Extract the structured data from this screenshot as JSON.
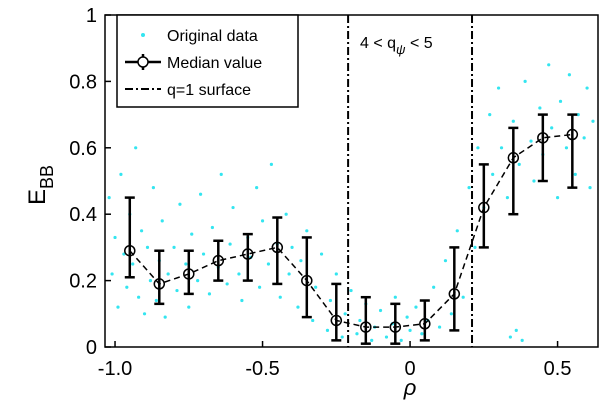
{
  "chart_data": {
    "type": "scatter-median",
    "x_label": "ρ",
    "y_label": {
      "main": "E",
      "subscript": "BB"
    },
    "annotation": {
      "text": "4 < q",
      "subscript": "ψ",
      "suffix": " < 5"
    },
    "xlim": [
      -1.034,
      0.637
    ],
    "ylim": [
      0,
      1
    ],
    "xticks": [
      {
        "value": -1,
        "label": "-1.0"
      },
      -0.5,
      0,
      0.5
    ],
    "yticks": [
      0,
      0.2,
      0.4,
      0.6,
      0.8,
      1
    ],
    "legend": "upper left",
    "scatter": {
      "name": "Original data",
      "color": "#33e5f0",
      "points": [
        [
          -1.02,
          0.45
        ],
        [
          -1.01,
          0.22
        ],
        [
          -1.0,
          0.33
        ],
        [
          -0.99,
          0.12
        ],
        [
          -0.98,
          0.52
        ],
        [
          -0.97,
          0.28
        ],
        [
          -0.96,
          0.18
        ],
        [
          -0.95,
          0.4
        ],
        [
          -0.94,
          0.25
        ],
        [
          -0.93,
          0.6
        ],
        [
          -0.92,
          0.15
        ],
        [
          -0.91,
          0.35
        ],
        [
          -0.9,
          0.1
        ],
        [
          -0.89,
          0.3
        ],
        [
          -0.88,
          0.2
        ],
        [
          -0.87,
          0.48
        ],
        [
          -0.86,
          0.14
        ],
        [
          -0.85,
          0.26
        ],
        [
          -0.84,
          0.38
        ],
        [
          -0.83,
          0.09
        ],
        [
          -0.82,
          0.22
        ],
        [
          -0.8,
          0.3
        ],
        [
          -0.79,
          0.17
        ],
        [
          -0.78,
          0.43
        ],
        [
          -0.76,
          0.25
        ],
        [
          -0.75,
          0.12
        ],
        [
          -0.74,
          0.34
        ],
        [
          -0.72,
          0.2
        ],
        [
          -0.71,
          0.46
        ],
        [
          -0.7,
          0.28
        ],
        [
          -0.68,
          0.16
        ],
        [
          -0.67,
          0.36
        ],
        [
          -0.65,
          0.24
        ],
        [
          -0.64,
          0.52
        ],
        [
          -0.62,
          0.19
        ],
        [
          -0.61,
          0.31
        ],
        [
          -0.6,
          0.42
        ],
        [
          -0.58,
          0.22
        ],
        [
          -0.57,
          0.14
        ],
        [
          -0.55,
          0.33
        ],
        [
          -0.54,
          0.27
        ],
        [
          -0.52,
          0.48
        ],
        [
          -0.51,
          0.18
        ],
        [
          -0.5,
          0.38
        ],
        [
          -0.48,
          0.25
        ],
        [
          -0.47,
          0.55
        ],
        [
          -0.45,
          0.31
        ],
        [
          -0.44,
          0.15
        ],
        [
          -0.42,
          0.4
        ],
        [
          -0.41,
          0.22
        ],
        [
          -0.4,
          0.3
        ],
        [
          -0.38,
          0.12
        ],
        [
          -0.37,
          0.26
        ],
        [
          -0.35,
          0.35
        ],
        [
          -0.33,
          0.08
        ],
        [
          -0.32,
          0.18
        ],
        [
          -0.3,
          0.28
        ],
        [
          -0.28,
          0.05
        ],
        [
          -0.27,
          0.14
        ],
        [
          -0.25,
          0.22
        ],
        [
          -0.23,
          0.03
        ],
        [
          -0.22,
          0.1
        ],
        [
          -0.2,
          0.17
        ],
        [
          -0.18,
          0.04
        ],
        [
          -0.17,
          0.08
        ],
        [
          -0.15,
          0.13
        ],
        [
          -0.13,
          0.02
        ],
        [
          -0.12,
          0.06
        ],
        [
          -0.1,
          0.11
        ],
        [
          -0.08,
          0.03
        ],
        [
          -0.06,
          0.07
        ],
        [
          -0.05,
          0.15
        ],
        [
          -0.03,
          0.02
        ],
        [
          -0.01,
          0.09
        ],
        [
          0.0,
          0.05
        ],
        [
          0.02,
          0.12
        ],
        [
          0.04,
          0.04
        ],
        [
          0.06,
          0.08
        ],
        [
          0.08,
          0.18
        ],
        [
          0.1,
          0.06
        ],
        [
          0.12,
          0.26
        ],
        [
          0.14,
          0.1
        ],
        [
          0.16,
          0.35
        ],
        [
          0.18,
          0.15
        ],
        [
          0.2,
          0.48
        ],
        [
          0.22,
          0.3
        ],
        [
          0.23,
          0.6
        ],
        [
          0.25,
          0.42
        ],
        [
          0.27,
          0.7
        ],
        [
          0.28,
          0.52
        ],
        [
          0.3,
          0.78
        ],
        [
          0.31,
          0.6
        ],
        [
          0.33,
          0.45
        ],
        [
          0.34,
          0.03
        ],
        [
          0.35,
          0.68
        ],
        [
          0.36,
          0.05
        ],
        [
          0.37,
          0.55
        ],
        [
          0.38,
          0.02
        ],
        [
          0.39,
          0.8
        ],
        [
          0.41,
          0.62
        ],
        [
          0.42,
          0.5
        ],
        [
          0.44,
          0.72
        ],
        [
          0.45,
          0.58
        ],
        [
          0.47,
          0.85
        ],
        [
          0.48,
          0.66
        ],
        [
          0.5,
          0.45
        ],
        [
          0.51,
          0.74
        ],
        [
          0.53,
          0.6
        ],
        [
          0.54,
          0.82
        ],
        [
          0.56,
          0.52
        ],
        [
          0.57,
          0.7
        ],
        [
          0.59,
          0.63
        ],
        [
          0.6,
          0.78
        ],
        [
          0.61,
          0.48
        ],
        [
          0.62,
          0.68
        ]
      ]
    },
    "median": {
      "name": "Median value",
      "color": "#000000",
      "x": [
        -0.95,
        -0.85,
        -0.75,
        -0.65,
        -0.55,
        -0.45,
        -0.35,
        -0.25,
        -0.15,
        -0.05,
        0.05,
        0.15,
        0.25,
        0.35,
        0.45,
        0.55
      ],
      "values": [
        0.29,
        0.19,
        0.22,
        0.26,
        0.28,
        0.3,
        0.2,
        0.08,
        0.06,
        0.06,
        0.07,
        0.16,
        0.42,
        0.57,
        0.63,
        0.64
      ],
      "lower": [
        0.21,
        0.13,
        0.16,
        0.2,
        0.2,
        0.19,
        0.09,
        0.02,
        0.01,
        0.01,
        0.02,
        0.05,
        0.3,
        0.4,
        0.5,
        0.48
      ],
      "upper": [
        0.45,
        0.29,
        0.29,
        0.32,
        0.34,
        0.39,
        0.33,
        0.19,
        0.15,
        0.13,
        0.14,
        0.3,
        0.55,
        0.66,
        0.7,
        0.7
      ]
    },
    "surface": {
      "name": "q=1 surface",
      "x": [
        -0.21,
        0.21
      ]
    }
  }
}
